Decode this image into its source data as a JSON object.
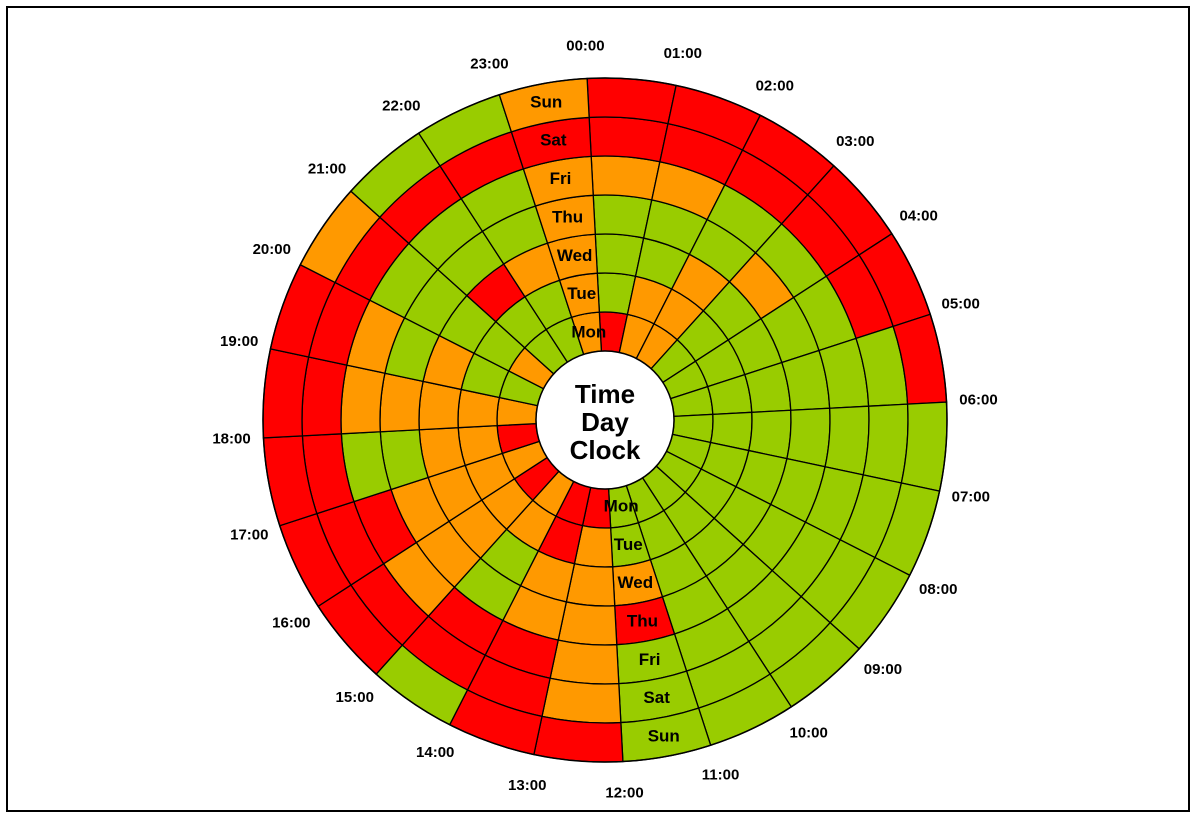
{
  "chart_data": {
    "type": "heatmap",
    "title_lines": [
      "Time",
      "Day",
      "Clock"
    ],
    "days": [
      "Mon",
      "Tue",
      "Wed",
      "Thu",
      "Fri",
      "Sat",
      "Sun"
    ],
    "hours": [
      "00:00",
      "01:00",
      "02:00",
      "03:00",
      "04:00",
      "05:00",
      "06:00",
      "07:00",
      "08:00",
      "09:00",
      "10:00",
      "11:00",
      "12:00",
      "13:00",
      "14:00",
      "15:00",
      "16:00",
      "17:00",
      "18:00",
      "19:00",
      "20:00",
      "21:00",
      "22:00",
      "23:00"
    ],
    "colors": {
      "low": "#99cc00",
      "medium": "#ff9900",
      "high": "#ff0000"
    },
    "levels": {
      "Mon": [
        "high",
        "medium",
        "medium",
        "low",
        "low",
        "low",
        "low",
        "low",
        "low",
        "low",
        "low",
        "low",
        "high",
        "high",
        "medium",
        "high",
        "medium",
        "high",
        "medium",
        "low",
        "medium",
        "low",
        "low",
        "medium"
      ],
      "Tue": [
        "low",
        "medium",
        "medium",
        "low",
        "low",
        "low",
        "low",
        "low",
        "low",
        "low",
        "low",
        "low",
        "medium",
        "high",
        "medium",
        "medium",
        "medium",
        "medium",
        "medium",
        "low",
        "low",
        "low",
        "low",
        "medium"
      ],
      "Wed": [
        "low",
        "low",
        "medium",
        "low",
        "low",
        "low",
        "low",
        "low",
        "low",
        "low",
        "low",
        "medium",
        "medium",
        "medium",
        "low",
        "medium",
        "medium",
        "medium",
        "medium",
        "medium",
        "low",
        "high",
        "medium",
        "medium"
      ],
      "Thu": [
        "low",
        "low",
        "low",
        "medium",
        "low",
        "low",
        "low",
        "low",
        "low",
        "low",
        "low",
        "high",
        "medium",
        "medium",
        "low",
        "medium",
        "medium",
        "low",
        "medium",
        "low",
        "low",
        "low",
        "low",
        "medium"
      ],
      "Fri": [
        "medium",
        "medium",
        "low",
        "low",
        "low",
        "low",
        "low",
        "low",
        "low",
        "low",
        "low",
        "low",
        "medium",
        "high",
        "high",
        "medium",
        "high",
        "low",
        "medium",
        "medium",
        "low",
        "low",
        "low",
        "medium"
      ],
      "Sat": [
        "high",
        "high",
        "high",
        "high",
        "high",
        "low",
        "low",
        "low",
        "low",
        "low",
        "low",
        "low",
        "medium",
        "high",
        "high",
        "high",
        "high",
        "high",
        "high",
        "high",
        "high",
        "high",
        "high",
        "high"
      ],
      "Sun": [
        "high",
        "high",
        "high",
        "high",
        "high",
        "high",
        "low",
        "low",
        "low",
        "low",
        "low",
        "low",
        "high",
        "high",
        "low",
        "high",
        "high",
        "high",
        "high",
        "high",
        "medium",
        "low",
        "low",
        "medium"
      ]
    }
  }
}
